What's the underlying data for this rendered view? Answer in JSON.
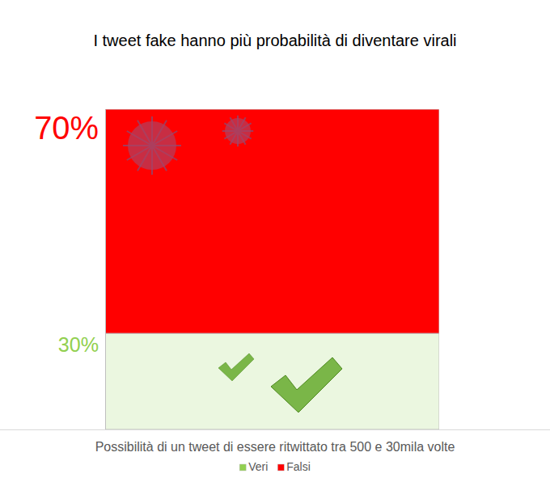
{
  "chart_data": {
    "type": "bar",
    "title": "I tweet fake hanno più probabilità di diventare virali",
    "x_label": "Possibilità di un tweet di essere ritwittato tra 500 e 30mila volte",
    "categories": [
      null
    ],
    "series": [
      {
        "name": "Veri",
        "color": "#92d050",
        "values": [
          30
        ],
        "value_labels": [
          "30%"
        ]
      },
      {
        "name": "Falsi",
        "color": "#ff0000",
        "values": [
          70
        ],
        "value_labels": [
          "70%"
        ]
      }
    ],
    "stacked": true,
    "data_labels": true,
    "tick_labels": false,
    "legend": "bottom",
    "ylim": [
      0,
      100
    ],
    "grid": false
  }
}
